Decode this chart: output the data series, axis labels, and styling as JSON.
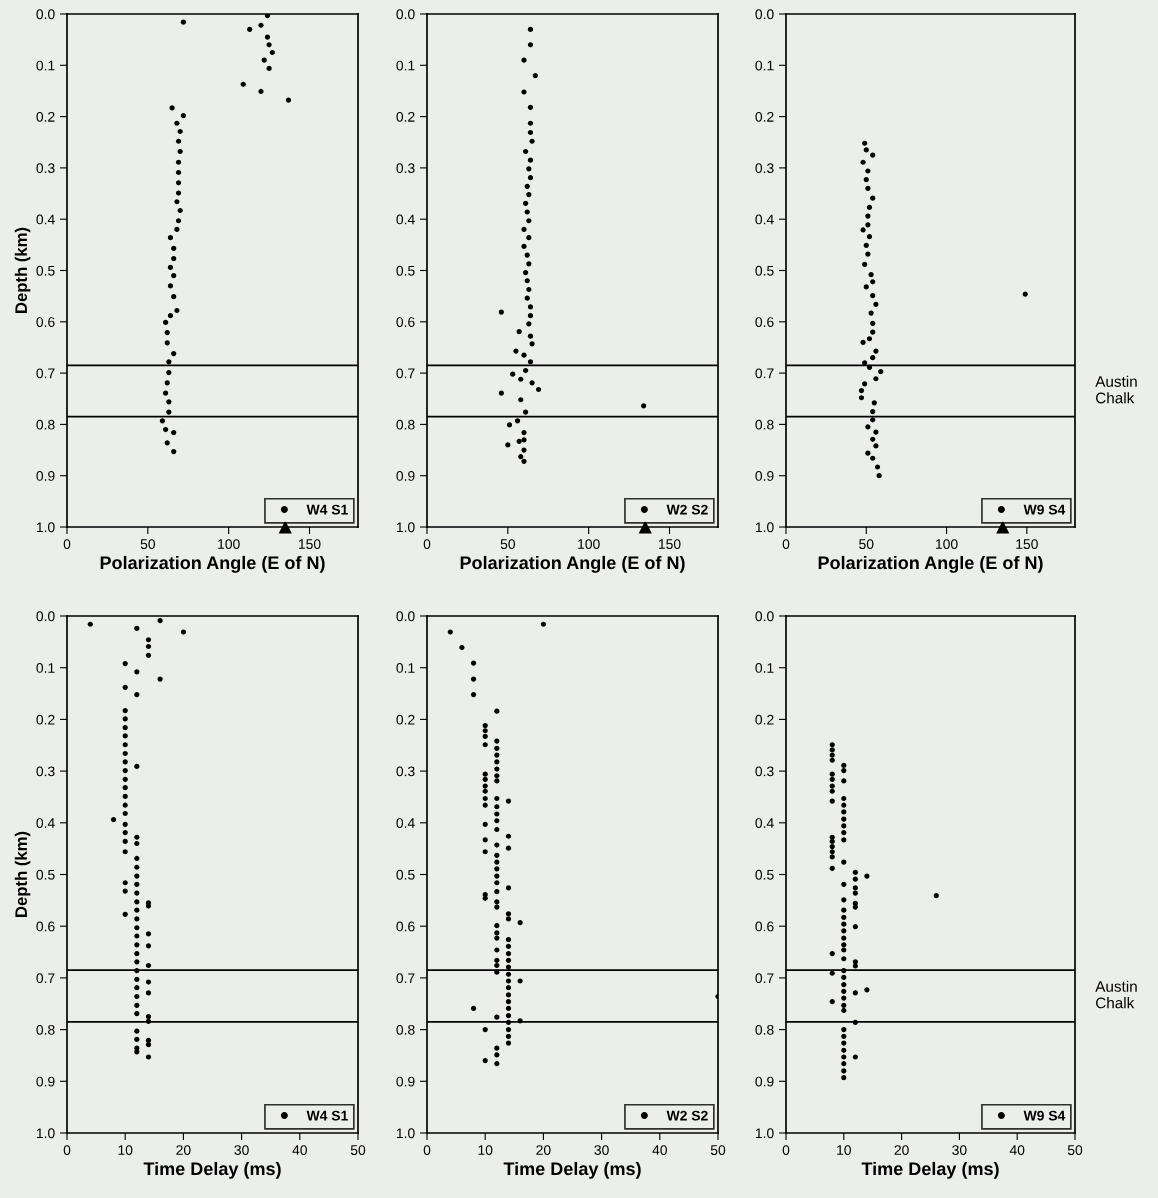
{
  "chart_data": [
    {
      "type": "scatter",
      "xlabel": "Polarization Angle (E of N)",
      "ylabel": "Depth (km)",
      "xlim": [
        0,
        180
      ],
      "xticks": [
        0,
        50,
        100,
        150
      ],
      "ylim": [
        1.0,
        0.0
      ],
      "yticks": [
        {
          "value": 0.0,
          "label": "0.0"
        },
        {
          "value": 0.1,
          "label": "0.1"
        },
        {
          "value": 0.2,
          "label": "0.2"
        },
        {
          "value": 0.3,
          "label": "0.3"
        },
        {
          "value": 0.4,
          "label": "0.4"
        },
        {
          "value": 0.5,
          "label": "0.5"
        },
        {
          "value": 0.6,
          "label": "0.6"
        },
        {
          "value": 0.7,
          "label": "0.7"
        },
        {
          "value": 0.8,
          "label": "0.8"
        },
        {
          "value": 0.9,
          "label": "0.9"
        },
        {
          "value": 1.0,
          "label": "1.0"
        }
      ],
      "legend": "bottom right",
      "marker": "circle",
      "ref_lines": [
        {
          "axis": "y",
          "value": 0.685,
          "color": "#000000"
        },
        {
          "axis": "y",
          "value": 0.785,
          "color": "#000000"
        }
      ],
      "series": [
        {
          "name": "W4 S1",
          "color": "#000000",
          "x": [
            72,
            124,
            120,
            113,
            124,
            125,
            127,
            122,
            125,
            109,
            120,
            137,
            65,
            72,
            68,
            70,
            69,
            70,
            69,
            69,
            69,
            69,
            68,
            70,
            69,
            68,
            64,
            66,
            66,
            64,
            66,
            64,
            66,
            68,
            64,
            61,
            62,
            62,
            66,
            63,
            63,
            62,
            61,
            63,
            63,
            59,
            61,
            66,
            62,
            66
          ],
          "values": [
            0.016,
            0.003,
            0.022,
            0.03,
            0.045,
            0.06,
            0.075,
            0.09,
            0.106,
            0.137,
            0.151,
            0.168,
            0.183,
            0.198,
            0.213,
            0.229,
            0.248,
            0.268,
            0.289,
            0.309,
            0.329,
            0.349,
            0.366,
            0.383,
            0.403,
            0.42,
            0.436,
            0.457,
            0.477,
            0.494,
            0.51,
            0.53,
            0.551,
            0.578,
            0.588,
            0.601,
            0.621,
            0.641,
            0.662,
            0.678,
            0.699,
            0.719,
            0.739,
            0.756,
            0.776,
            0.793,
            0.81,
            0.816,
            0.836,
            0.853
          ]
        },
        {
          "type": "scatter",
          "marker": "triangle",
          "color": "#000000",
          "x": [
            135
          ],
          "values": [
            1.0
          ]
        }
      ]
    },
    {
      "type": "scatter",
      "xlabel": "Polarization Angle (E of N)",
      "xlim": [
        0,
        180
      ],
      "xticks": [
        0,
        50,
        100,
        150
      ],
      "ylim": [
        1.0,
        0.0
      ],
      "yticks": [
        {
          "value": 0.0,
          "label": "0.0"
        },
        {
          "value": 0.1,
          "label": "0.1"
        },
        {
          "value": 0.2,
          "label": "0.2"
        },
        {
          "value": 0.3,
          "label": "0.3"
        },
        {
          "value": 0.4,
          "label": "0.4"
        },
        {
          "value": 0.5,
          "label": "0.5"
        },
        {
          "value": 0.6,
          "label": "0.6"
        },
        {
          "value": 0.7,
          "label": "0.7"
        },
        {
          "value": 0.8,
          "label": "0.8"
        },
        {
          "value": 0.9,
          "label": "0.9"
        },
        {
          "value": 1.0,
          "label": "1.0"
        }
      ],
      "legend": "bottom right",
      "marker": "circle",
      "ref_lines": [
        {
          "axis": "y",
          "value": 0.685,
          "color": "#000000"
        },
        {
          "axis": "y",
          "value": 0.785,
          "color": "#000000"
        }
      ],
      "series": [
        {
          "name": "W2 S2",
          "color": "#000000",
          "x": [
            64,
            64,
            60,
            67,
            60,
            64,
            64,
            64,
            65,
            61,
            64,
            63,
            64,
            62,
            63,
            61,
            62,
            63,
            60,
            63,
            60,
            62,
            63,
            61,
            62,
            63,
            62,
            64,
            46,
            64,
            63,
            57,
            64,
            65,
            55,
            60,
            64,
            61,
            53,
            58,
            65,
            69,
            46,
            58,
            134,
            61,
            56,
            51,
            60,
            57,
            60,
            50,
            60,
            58,
            60
          ],
          "values": [
            0.03,
            0.06,
            0.09,
            0.12,
            0.152,
            0.182,
            0.213,
            0.231,
            0.248,
            0.268,
            0.285,
            0.302,
            0.319,
            0.336,
            0.352,
            0.369,
            0.386,
            0.403,
            0.42,
            0.436,
            0.453,
            0.47,
            0.487,
            0.504,
            0.52,
            0.537,
            0.554,
            0.571,
            0.581,
            0.588,
            0.604,
            0.619,
            0.628,
            0.643,
            0.657,
            0.665,
            0.678,
            0.695,
            0.702,
            0.712,
            0.719,
            0.732,
            0.739,
            0.752,
            0.764,
            0.776,
            0.793,
            0.801,
            0.816,
            0.833,
            0.83,
            0.84,
            0.85,
            0.863,
            0.872
          ]
        },
        {
          "type": "scatter",
          "marker": "triangle",
          "color": "#000000",
          "x": [
            135
          ],
          "values": [
            1.0
          ]
        }
      ]
    },
    {
      "type": "scatter",
      "xlabel": "Polarization Angle (E of N)",
      "xlim": [
        0,
        180
      ],
      "xticks": [
        0,
        50,
        100,
        150
      ],
      "ylim": [
        1.0,
        0.0
      ],
      "yticks": [
        {
          "value": 0.0,
          "label": "0.0"
        },
        {
          "value": 0.1,
          "label": "0.1"
        },
        {
          "value": 0.2,
          "label": "0.2"
        },
        {
          "value": 0.3,
          "label": "0.3"
        },
        {
          "value": 0.4,
          "label": "0.4"
        },
        {
          "value": 0.5,
          "label": "0.5"
        },
        {
          "value": 0.6,
          "label": "0.6"
        },
        {
          "value": 0.7,
          "label": "0.7"
        },
        {
          "value": 0.8,
          "label": "0.8"
        },
        {
          "value": 0.9,
          "label": "0.9"
        },
        {
          "value": 1.0,
          "label": "1.0"
        }
      ],
      "legend": "bottom right",
      "marker": "circle",
      "ref_lines": [
        {
          "axis": "y",
          "value": 0.685,
          "color": "#000000"
        },
        {
          "axis": "y",
          "value": 0.785,
          "color": "#000000"
        }
      ],
      "annotations": [
        "Austin\nChalk"
      ],
      "series": [
        {
          "name": "W9 S4",
          "color": "#000000",
          "x": [
            49,
            50,
            54,
            48,
            51,
            50,
            51,
            54,
            52,
            51,
            51,
            48,
            52,
            50,
            51,
            49,
            53,
            54,
            50,
            54,
            149,
            56,
            53,
            54,
            54,
            48,
            52,
            56,
            54,
            49,
            52,
            59,
            56,
            49,
            47,
            47,
            55,
            54,
            54,
            51,
            56,
            54,
            56,
            51,
            54,
            57,
            58
          ],
          "values": [
            0.252,
            0.265,
            0.275,
            0.289,
            0.306,
            0.323,
            0.34,
            0.359,
            0.377,
            0.394,
            0.411,
            0.421,
            0.434,
            0.451,
            0.468,
            0.488,
            0.508,
            0.522,
            0.532,
            0.549,
            0.546,
            0.566,
            0.583,
            0.603,
            0.62,
            0.64,
            0.633,
            0.657,
            0.67,
            0.68,
            0.689,
            0.697,
            0.711,
            0.721,
            0.734,
            0.748,
            0.758,
            0.775,
            0.791,
            0.805,
            0.815,
            0.829,
            0.842,
            0.856,
            0.866,
            0.883,
            0.9
          ]
        },
        {
          "type": "scatter",
          "marker": "triangle",
          "color": "#000000",
          "x": [
            135
          ],
          "values": [
            1.0
          ]
        }
      ]
    },
    {
      "type": "scatter",
      "xlabel": "Time Delay (ms)",
      "ylabel": "Depth (km)",
      "xlim": [
        0,
        50
      ],
      "xticks": [
        0,
        10,
        20,
        30,
        40,
        50
      ],
      "ylim": [
        1.0,
        0.0
      ],
      "yticks": [
        {
          "value": 0.0,
          "label": "0.0"
        },
        {
          "value": 0.1,
          "label": "0.1"
        },
        {
          "value": 0.2,
          "label": "0.2"
        },
        {
          "value": 0.3,
          "label": "0.3"
        },
        {
          "value": 0.4,
          "label": "0.4"
        },
        {
          "value": 0.5,
          "label": "0.5"
        },
        {
          "value": 0.6,
          "label": "0.6"
        },
        {
          "value": 0.7,
          "label": "0.7"
        },
        {
          "value": 0.8,
          "label": "0.8"
        },
        {
          "value": 0.9,
          "label": "0.9"
        },
        {
          "value": 1.0,
          "label": "1.0"
        }
      ],
      "legend": "bottom right",
      "marker": "circle",
      "ref_lines": [
        {
          "axis": "y",
          "value": 0.685,
          "color": "#000000"
        },
        {
          "axis": "y",
          "value": 0.785,
          "color": "#000000"
        }
      ],
      "series": [
        {
          "name": "W4 S1",
          "color": "#000000",
          "x": [
            4,
            12,
            16,
            20,
            14,
            14,
            14,
            10,
            12,
            16,
            10,
            12,
            10,
            10,
            10,
            10,
            10,
            10,
            10,
            10,
            10,
            10,
            10,
            10,
            10,
            10,
            10,
            10,
            10,
            10,
            10,
            10,
            12,
            8,
            12,
            12,
            12,
            12,
            12,
            12,
            12,
            12,
            12,
            12,
            12,
            12,
            12,
            12,
            12,
            12,
            12,
            12,
            12,
            12,
            12,
            12,
            12,
            12,
            12,
            14,
            14,
            14,
            14,
            14,
            14,
            14,
            14,
            14,
            14,
            14,
            14
          ],
          "values": [
            0.016,
            0.024,
            0.009,
            0.031,
            0.046,
            0.059,
            0.076,
            0.092,
            0.108,
            0.122,
            0.138,
            0.152,
            0.183,
            0.199,
            0.216,
            0.232,
            0.249,
            0.266,
            0.282,
            0.299,
            0.316,
            0.332,
            0.349,
            0.366,
            0.382,
            0.403,
            0.419,
            0.436,
            0.456,
            0.516,
            0.532,
            0.577,
            0.291,
            0.394,
            0.428,
            0.44,
            0.469,
            0.486,
            0.503,
            0.519,
            0.536,
            0.553,
            0.569,
            0.586,
            0.603,
            0.619,
            0.636,
            0.653,
            0.669,
            0.686,
            0.703,
            0.719,
            0.736,
            0.753,
            0.769,
            0.803,
            0.819,
            0.836,
            0.843,
            0.555,
            0.561,
            0.615,
            0.638,
            0.676,
            0.708,
            0.729,
            0.775,
            0.784,
            0.821,
            0.829,
            0.853
          ]
        }
      ]
    },
    {
      "type": "scatter",
      "xlabel": "Time Delay (ms)",
      "xlim": [
        0,
        50
      ],
      "xticks": [
        0,
        10,
        20,
        30,
        40,
        50
      ],
      "ylim": [
        1.0,
        0.0
      ],
      "yticks": [
        {
          "value": 0.0,
          "label": "0.0"
        },
        {
          "value": 0.1,
          "label": "0.1"
        },
        {
          "value": 0.2,
          "label": "0.2"
        },
        {
          "value": 0.3,
          "label": "0.3"
        },
        {
          "value": 0.4,
          "label": "0.4"
        },
        {
          "value": 0.5,
          "label": "0.5"
        },
        {
          "value": 0.6,
          "label": "0.6"
        },
        {
          "value": 0.7,
          "label": "0.7"
        },
        {
          "value": 0.8,
          "label": "0.8"
        },
        {
          "value": 0.9,
          "label": "0.9"
        },
        {
          "value": 1.0,
          "label": "1.0"
        }
      ],
      "legend": "bottom right",
      "marker": "circle",
      "ref_lines": [
        {
          "axis": "y",
          "value": 0.685,
          "color": "#000000"
        },
        {
          "axis": "y",
          "value": 0.785,
          "color": "#000000"
        }
      ],
      "series": [
        {
          "name": "W2 S2",
          "color": "#000000",
          "x": [
            4,
            6,
            8,
            8,
            8,
            20,
            12,
            10,
            10,
            10,
            10,
            10,
            10,
            10,
            10,
            10,
            10,
            10,
            10,
            10,
            10,
            10,
            10,
            10,
            12,
            12,
            12,
            12,
            12,
            12,
            12,
            12,
            12,
            12,
            12,
            12,
            12,
            12,
            12,
            12,
            12,
            12,
            12,
            12,
            12,
            12,
            12,
            12,
            12,
            12,
            12,
            12,
            12,
            12,
            12,
            12,
            14,
            14,
            14,
            14,
            14,
            14,
            14,
            14,
            14,
            14,
            14,
            14,
            14,
            14,
            14,
            14,
            14,
            14,
            14,
            14,
            14,
            14,
            16,
            16,
            16,
            8,
            50
          ],
          "values": [
            0.031,
            0.061,
            0.091,
            0.122,
            0.152,
            0.016,
            0.184,
            0.212,
            0.222,
            0.233,
            0.249,
            0.306,
            0.316,
            0.329,
            0.339,
            0.353,
            0.366,
            0.403,
            0.433,
            0.456,
            0.539,
            0.546,
            0.8,
            0.86,
            0.242,
            0.256,
            0.269,
            0.282,
            0.296,
            0.309,
            0.319,
            0.353,
            0.369,
            0.383,
            0.396,
            0.413,
            0.443,
            0.463,
            0.476,
            0.489,
            0.503,
            0.516,
            0.533,
            0.553,
            0.563,
            0.599,
            0.613,
            0.623,
            0.646,
            0.666,
            0.676,
            0.689,
            0.776,
            0.836,
            0.849,
            0.866,
            0.358,
            0.426,
            0.449,
            0.526,
            0.576,
            0.586,
            0.626,
            0.639,
            0.653,
            0.666,
            0.679,
            0.693,
            0.706,
            0.719,
            0.733,
            0.746,
            0.759,
            0.773,
            0.786,
            0.8,
            0.813,
            0.826,
            0.593,
            0.706,
            0.783,
            0.759,
            0.736
          ]
        }
      ]
    },
    {
      "type": "scatter",
      "xlabel": "Time Delay (ms)",
      "xlim": [
        0,
        50
      ],
      "xticks": [
        0,
        10,
        20,
        30,
        40,
        50
      ],
      "ylim": [
        1.0,
        0.0
      ],
      "yticks": [
        {
          "value": 0.0,
          "label": "0.0"
        },
        {
          "value": 0.1,
          "label": "0.1"
        },
        {
          "value": 0.2,
          "label": "0.2"
        },
        {
          "value": 0.3,
          "label": "0.3"
        },
        {
          "value": 0.4,
          "label": "0.4"
        },
        {
          "value": 0.5,
          "label": "0.5"
        },
        {
          "value": 0.6,
          "label": "0.6"
        },
        {
          "value": 0.7,
          "label": "0.7"
        },
        {
          "value": 0.8,
          "label": "0.8"
        },
        {
          "value": 0.9,
          "label": "0.9"
        },
        {
          "value": 1.0,
          "label": "1.0"
        }
      ],
      "legend": "bottom right",
      "marker": "circle",
      "ref_lines": [
        {
          "axis": "y",
          "value": 0.685,
          "color": "#000000"
        },
        {
          "axis": "y",
          "value": 0.785,
          "color": "#000000"
        }
      ],
      "annotations": [
        "Austin\nChalk"
      ],
      "series": [
        {
          "name": "W9 S4",
          "color": "#000000",
          "x": [
            8,
            8,
            8,
            8,
            8,
            8,
            8,
            8,
            8,
            8,
            8,
            8,
            8,
            8,
            8,
            8,
            8,
            8,
            10,
            10,
            10,
            10,
            10,
            10,
            10,
            10,
            10,
            10,
            10,
            10,
            10,
            10,
            10,
            10,
            10,
            10,
            10,
            10,
            10,
            10,
            10,
            10,
            10,
            10,
            10,
            10,
            10,
            10,
            10,
            10,
            10,
            10,
            10,
            10,
            12,
            12,
            12,
            12,
            12,
            12,
            12,
            12,
            12,
            12,
            12,
            12,
            14,
            14,
            26
          ],
          "values": [
            0.249,
            0.259,
            0.269,
            0.279,
            0.306,
            0.316,
            0.329,
            0.339,
            0.358,
            0.428,
            0.436,
            0.446,
            0.456,
            0.466,
            0.488,
            0.653,
            0.691,
            0.746,
            0.289,
            0.299,
            0.319,
            0.353,
            0.366,
            0.379,
            0.393,
            0.406,
            0.419,
            0.433,
            0.476,
            0.519,
            0.549,
            0.569,
            0.583,
            0.596,
            0.609,
            0.623,
            0.636,
            0.646,
            0.663,
            0.686,
            0.699,
            0.713,
            0.726,
            0.739,
            0.753,
            0.763,
            0.8,
            0.813,
            0.826,
            0.84,
            0.853,
            0.866,
            0.88,
            0.893,
            0.496,
            0.509,
            0.526,
            0.536,
            0.556,
            0.563,
            0.601,
            0.669,
            0.677,
            0.729,
            0.786,
            0.853,
            0.503,
            0.723,
            0.541
          ]
        }
      ]
    }
  ]
}
